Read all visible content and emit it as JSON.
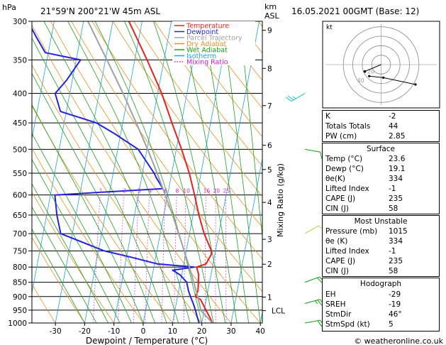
{
  "header": {
    "left_unit": "hPa",
    "location": "21°59'N  200°21'W  45m  ASL",
    "km_unit": "km",
    "asl_unit": "ASL",
    "datetime": "16.05.2021  00GMT  (Base: 12)"
  },
  "legend": [
    {
      "label": "Temperature",
      "color": "#e8201e",
      "style": "solid"
    },
    {
      "label": "Dewpoint",
      "color": "#2323dd",
      "style": "solid"
    },
    {
      "label": "Parcel Trajectory",
      "color": "#a0a0a0",
      "style": "solid"
    },
    {
      "label": "Dry Adiabat",
      "color": "#e8901e",
      "style": "solid"
    },
    {
      "label": "Wet Adiabat",
      "color": "#1ea01e",
      "style": "solid"
    },
    {
      "label": "Isotherm",
      "color": "#1ea0e8",
      "style": "solid"
    },
    {
      "label": "Mixing Ratio",
      "color": "#d01ed0",
      "style": "dotted"
    }
  ],
  "chart_data": {
    "type": "line",
    "subtype": "skew-t log-p",
    "xlabel": "Dewpoint / Temperature (°C)",
    "ylabel": "",
    "right_axis_label": "Mixing Ratio (g/kg)",
    "x_ticks": [
      "-30",
      "-20",
      "-10",
      "0",
      "10",
      "20",
      "30",
      "40"
    ],
    "x_tick_values": [
      -30,
      -20,
      -10,
      0,
      10,
      20,
      30,
      40
    ],
    "xlim": [
      -35,
      40
    ],
    "pressure_ticks": [
      "300",
      "350",
      "400",
      "450",
      "500",
      "550",
      "600",
      "650",
      "700",
      "750",
      "800",
      "850",
      "900",
      "950",
      "1000"
    ],
    "pressure_values": [
      300,
      350,
      400,
      450,
      500,
      550,
      600,
      650,
      700,
      750,
      800,
      850,
      900,
      950,
      1000
    ],
    "ylim_hpa": [
      1000,
      300
    ],
    "km_ticks": [
      "9",
      "8",
      "7",
      "6",
      "5",
      "4",
      "3",
      "2",
      "1"
    ],
    "km_tick_pressures": [
      311,
      362,
      420,
      492,
      542,
      618,
      716,
      791,
      902
    ],
    "lcl_label": "LCL",
    "lcl_pressure": 952,
    "mixing_ratio_labels": [
      "1",
      "2",
      "3",
      "4",
      "6",
      "8",
      "10",
      "16",
      "20",
      "25"
    ],
    "mixing_ratio_values": [
      1,
      2,
      3,
      4,
      6,
      8,
      10,
      16,
      20,
      25
    ],
    "series": [
      {
        "name": "Temperature",
        "color": "#e8201e",
        "pressure": [
          1000,
          975,
          950,
          925,
          910,
          900,
          880,
          850,
          825,
          800,
          790,
          775,
          760,
          750,
          700,
          650,
          600,
          550,
          500,
          450,
          400,
          350,
          300
        ],
        "temperature": [
          23.6,
          22.2,
          20.6,
          19.0,
          18.0,
          16.0,
          16.6,
          16.2,
          15.8,
          14.6,
          17.6,
          18.2,
          18.8,
          18.6,
          15.0,
          12.0,
          9.2,
          6.0,
          1.8,
          -3.2,
          -8.6,
          -15.8,
          -24.5
        ]
      },
      {
        "name": "Dewpoint",
        "color": "#2323dd",
        "pressure": [
          1000,
          975,
          950,
          925,
          900,
          880,
          850,
          825,
          810,
          800,
          790,
          770,
          750,
          700,
          650,
          600,
          585,
          560,
          550,
          500,
          470,
          450,
          430,
          400,
          380,
          350,
          340,
          320,
          300
        ],
        "temperature": [
          19.1,
          18.0,
          17.0,
          15.8,
          14.4,
          13.4,
          12.2,
          9.4,
          6.6,
          13.8,
          1.0,
          -8.0,
          -18.0,
          -34.0,
          -36.5,
          -38.5,
          -2.0,
          -5.0,
          -6.0,
          -13.0,
          -22.0,
          -29.0,
          -42.0,
          -45.0,
          -42.0,
          -38.5,
          -51.0,
          -55.0,
          -59.0
        ]
      },
      {
        "name": "Parcel Trajectory",
        "color": "#a0a0a0",
        "pressure": [
          1000,
          952,
          900,
          850,
          800,
          750,
          700,
          650,
          600,
          550,
          500,
          450,
          400,
          350,
          300
        ],
        "temperature": [
          23.6,
          18.9,
          16.9,
          14.6,
          12.1,
          9.3,
          6.3,
          3.0,
          -0.8,
          -5.0,
          -9.8,
          -15.4,
          -21.8,
          -29.5,
          -38.5
        ]
      }
    ]
  },
  "hodograph": {
    "corner_label": "kt",
    "ring_labels": [
      "20",
      "40"
    ],
    "ring_knots": [
      10,
      20,
      30,
      40
    ],
    "max_knots": 45,
    "winds": [
      {
        "dir_deg": 46,
        "speed_kt": 5
      },
      {
        "dir_deg": 350,
        "speed_kt": 4
      },
      {
        "dir_deg": 300,
        "speed_kt": 12
      }
    ]
  },
  "wind_barbs": [
    {
      "pressure": 1000,
      "dir_deg": 80,
      "speed_kt": 20,
      "color": "#10a010"
    },
    {
      "pressure": 925,
      "dir_deg": 75,
      "speed_kt": 25,
      "color": "#10a010"
    },
    {
      "pressure": 850,
      "dir_deg": 70,
      "speed_kt": 20,
      "color": "#10a010"
    },
    {
      "pressure": 700,
      "dir_deg": 60,
      "speed_kt": 10,
      "color": "#b0d040"
    },
    {
      "pressure": 500,
      "dir_deg": 100,
      "speed_kt": 10,
      "color": "#10a010"
    },
    {
      "pressure": 400,
      "dir_deg": 240,
      "speed_kt": 25,
      "color": "#20c0d0"
    }
  ],
  "indices": {
    "general": [
      {
        "label": "K",
        "value": "-2"
      },
      {
        "label": "Totals Totals",
        "value": "44"
      },
      {
        "label": "PW (cm)",
        "value": "2.85"
      }
    ],
    "surface_title": "Surface",
    "surface": [
      {
        "label": "Temp (°C)",
        "value": "23.6"
      },
      {
        "label": "Dewp (°C)",
        "value": "19.1"
      },
      {
        "label": "θe(K)",
        "value": "334"
      },
      {
        "label": "Lifted Index",
        "value": "-1"
      },
      {
        "label": "CAPE (J)",
        "value": "235"
      },
      {
        "label": "CIN (J)",
        "value": "58"
      }
    ],
    "most_unstable_title": "Most Unstable",
    "most_unstable": [
      {
        "label": "Pressure (mb)",
        "value": "1015"
      },
      {
        "label": "θe (K)",
        "value": "334"
      },
      {
        "label": "Lifted Index",
        "value": "-1"
      },
      {
        "label": "CAPE (J)",
        "value": "235"
      },
      {
        "label": "CIN (J)",
        "value": "58"
      }
    ],
    "hodograph_title": "Hodograph",
    "hodograph_rows": [
      {
        "label": "EH",
        "value": "-29"
      },
      {
        "label": "SREH",
        "value": "-19"
      },
      {
        "label": "StmDir",
        "value": "46°"
      },
      {
        "label": "StmSpd (kt)",
        "value": "5"
      }
    ]
  },
  "footer": {
    "copyright": "© weatheronline.co.uk"
  }
}
